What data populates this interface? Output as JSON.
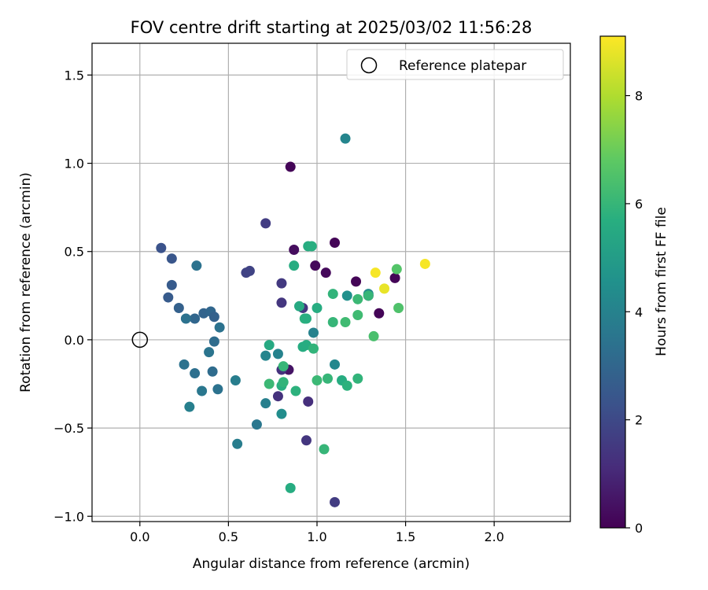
{
  "chart_data": {
    "type": "scatter",
    "title": "FOV centre drift starting at 2025/03/02 11:56:28",
    "xlabel": "Angular distance from reference (arcmin)",
    "ylabel": "Rotation from reference (arcmin)",
    "xlim": [
      -0.27,
      2.43
    ],
    "ylim": [
      -1.03,
      1.68
    ],
    "x_ticks": [
      0.0,
      0.5,
      1.0,
      1.5,
      2.0
    ],
    "x_tick_labels": [
      "0.0",
      "0.5",
      "1.0",
      "1.5",
      "2.0"
    ],
    "y_ticks": [
      -1.0,
      -0.5,
      0.0,
      0.5,
      1.0,
      1.5
    ],
    "y_tick_labels": [
      "−1.0",
      "−0.5",
      "0.0",
      "0.5",
      "1.0",
      "1.5"
    ],
    "grid": true,
    "legend": {
      "position": "top-right",
      "entries": [
        {
          "label": "Reference platepar",
          "marker": "open-circle"
        }
      ]
    },
    "reference_point": {
      "x": 0.0,
      "y": 0.0
    },
    "colorbar": {
      "label": "Hours from first FF file",
      "colormap": "viridis",
      "range": [
        0,
        9.1
      ],
      "ticks": [
        0,
        2,
        4,
        6,
        8
      ],
      "tick_labels": [
        "0",
        "2",
        "4",
        "6",
        "8"
      ]
    },
    "points": [
      {
        "x": 0.85,
        "y": 0.98,
        "h": 0.1
      },
      {
        "x": 1.1,
        "y": 0.55,
        "h": 0.1
      },
      {
        "x": 0.99,
        "y": 0.42,
        "h": 0.2
      },
      {
        "x": 1.05,
        "y": 0.38,
        "h": 0.2
      },
      {
        "x": 1.22,
        "y": 0.33,
        "h": 0.1
      },
      {
        "x": 1.29,
        "y": 0.25,
        "h": 0.1
      },
      {
        "x": 1.35,
        "y": 0.15,
        "h": 0.1
      },
      {
        "x": 1.44,
        "y": 0.35,
        "h": 0.1
      },
      {
        "x": 0.87,
        "y": 0.51,
        "h": 0.3
      },
      {
        "x": 0.84,
        "y": -0.17,
        "h": 0.5
      },
      {
        "x": 0.71,
        "y": 0.66,
        "h": 1.6
      },
      {
        "x": 0.8,
        "y": 0.32,
        "h": 1.5
      },
      {
        "x": 0.8,
        "y": 0.21,
        "h": 1.4
      },
      {
        "x": 0.92,
        "y": 0.18,
        "h": 1.4
      },
      {
        "x": 0.6,
        "y": 0.38,
        "h": 1.8
      },
      {
        "x": 0.62,
        "y": 0.39,
        "h": 1.8
      },
      {
        "x": 0.95,
        "y": -0.35,
        "h": 1.2
      },
      {
        "x": 0.78,
        "y": -0.32,
        "h": 1.3
      },
      {
        "x": 0.8,
        "y": -0.17,
        "h": 1.3
      },
      {
        "x": 0.94,
        "y": -0.57,
        "h": 1.4
      },
      {
        "x": 1.1,
        "y": -0.92,
        "h": 1.6
      },
      {
        "x": 0.12,
        "y": 0.52,
        "h": 2.3
      },
      {
        "x": 0.18,
        "y": 0.46,
        "h": 2.4
      },
      {
        "x": 0.18,
        "y": 0.31,
        "h": 2.6
      },
      {
        "x": 0.16,
        "y": 0.24,
        "h": 2.6
      },
      {
        "x": 0.22,
        "y": 0.18,
        "h": 2.8
      },
      {
        "x": 0.32,
        "y": 0.42,
        "h": 3.4
      },
      {
        "x": 0.36,
        "y": 0.15,
        "h": 2.9
      },
      {
        "x": 0.31,
        "y": 0.12,
        "h": 3.0
      },
      {
        "x": 0.4,
        "y": 0.16,
        "h": 3.0
      },
      {
        "x": 0.42,
        "y": 0.13,
        "h": 2.8
      },
      {
        "x": 0.45,
        "y": 0.07,
        "h": 3.4
      },
      {
        "x": 0.26,
        "y": 0.12,
        "h": 3.4
      },
      {
        "x": 0.42,
        "y": -0.01,
        "h": 3.2
      },
      {
        "x": 0.39,
        "y": -0.07,
        "h": 3.5
      },
      {
        "x": 0.25,
        "y": -0.14,
        "h": 3.4
      },
      {
        "x": 0.31,
        "y": -0.19,
        "h": 3.3
      },
      {
        "x": 0.41,
        "y": -0.18,
        "h": 3.2
      },
      {
        "x": 0.35,
        "y": -0.29,
        "h": 3.6
      },
      {
        "x": 0.44,
        "y": -0.28,
        "h": 3.4
      },
      {
        "x": 0.28,
        "y": -0.38,
        "h": 3.9
      },
      {
        "x": 0.54,
        "y": -0.23,
        "h": 3.8
      },
      {
        "x": 0.55,
        "y": -0.59,
        "h": 3.8
      },
      {
        "x": 0.66,
        "y": -0.48,
        "h": 3.6
      },
      {
        "x": 0.71,
        "y": -0.36,
        "h": 3.9
      },
      {
        "x": 0.71,
        "y": -0.09,
        "h": 4.1
      },
      {
        "x": 0.78,
        "y": -0.08,
        "h": 4.0
      },
      {
        "x": 1.16,
        "y": 1.14,
        "h": 4.1
      },
      {
        "x": 0.98,
        "y": 0.04,
        "h": 4.0
      },
      {
        "x": 1.1,
        "y": -0.14,
        "h": 4.2
      },
      {
        "x": 1.17,
        "y": 0.25,
        "h": 4.5
      },
      {
        "x": 1.29,
        "y": 0.26,
        "h": 4.3
      },
      {
        "x": 0.8,
        "y": -0.42,
        "h": 4.4
      },
      {
        "x": 0.73,
        "y": -0.03,
        "h": 5.5
      },
      {
        "x": 0.87,
        "y": 0.42,
        "h": 5.6
      },
      {
        "x": 0.9,
        "y": 0.19,
        "h": 5.5
      },
      {
        "x": 0.95,
        "y": 0.53,
        "h": 5.6
      },
      {
        "x": 0.97,
        "y": 0.53,
        "h": 5.7
      },
      {
        "x": 0.93,
        "y": 0.12,
        "h": 5.8
      },
      {
        "x": 0.94,
        "y": 0.12,
        "h": 5.7
      },
      {
        "x": 1.0,
        "y": 0.18,
        "h": 5.6
      },
      {
        "x": 0.92,
        "y": -0.04,
        "h": 5.6
      },
      {
        "x": 0.94,
        "y": -0.03,
        "h": 5.6
      },
      {
        "x": 0.98,
        "y": -0.05,
        "h": 5.9
      },
      {
        "x": 0.8,
        "y": -0.26,
        "h": 5.7
      },
      {
        "x": 0.81,
        "y": -0.15,
        "h": 6.0
      },
      {
        "x": 0.73,
        "y": -0.25,
        "h": 6.1
      },
      {
        "x": 0.81,
        "y": -0.24,
        "h": 5.9
      },
      {
        "x": 0.88,
        "y": -0.29,
        "h": 5.8
      },
      {
        "x": 1.0,
        "y": -0.23,
        "h": 6.1
      },
      {
        "x": 1.06,
        "y": -0.22,
        "h": 6.0
      },
      {
        "x": 1.14,
        "y": -0.23,
        "h": 5.6
      },
      {
        "x": 1.17,
        "y": -0.26,
        "h": 5.8
      },
      {
        "x": 1.23,
        "y": -0.22,
        "h": 5.9
      },
      {
        "x": 0.85,
        "y": -0.84,
        "h": 5.6
      },
      {
        "x": 1.04,
        "y": -0.62,
        "h": 6.0
      },
      {
        "x": 1.09,
        "y": 0.26,
        "h": 5.9
      },
      {
        "x": 1.09,
        "y": 0.1,
        "h": 6.0
      },
      {
        "x": 1.16,
        "y": 0.1,
        "h": 6.2
      },
      {
        "x": 1.23,
        "y": 0.23,
        "h": 6.1
      },
      {
        "x": 1.23,
        "y": 0.14,
        "h": 6.2
      },
      {
        "x": 1.29,
        "y": 0.25,
        "h": 6.0
      },
      {
        "x": 1.32,
        "y": 0.02,
        "h": 6.4
      },
      {
        "x": 1.45,
        "y": 0.4,
        "h": 6.6
      },
      {
        "x": 1.46,
        "y": 0.18,
        "h": 6.5
      },
      {
        "x": 1.33,
        "y": 0.38,
        "h": 9.0
      },
      {
        "x": 1.38,
        "y": 0.29,
        "h": 8.8
      },
      {
        "x": 1.61,
        "y": 0.43,
        "h": 9.0
      }
    ]
  }
}
